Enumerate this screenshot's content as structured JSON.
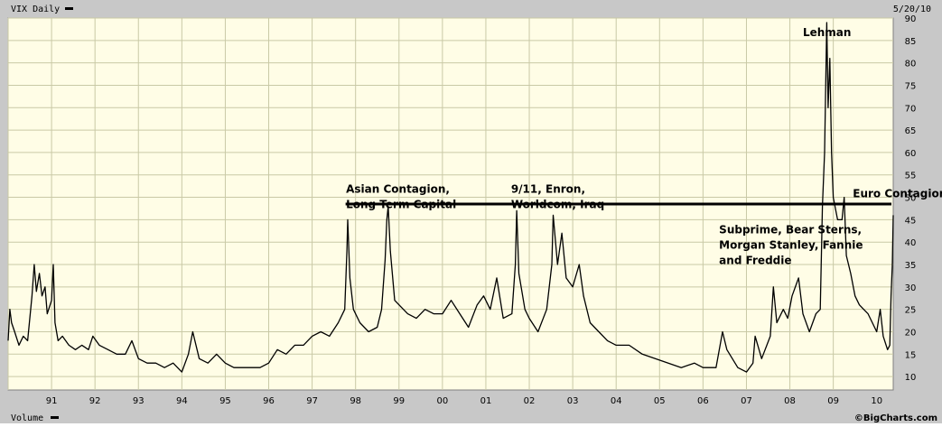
{
  "header": {
    "title": "VIX Daily",
    "date": "5/20/10"
  },
  "footer": {
    "volume_label": "Volume",
    "copyright": "©BigCharts.com"
  },
  "colors": {
    "plot_bg": "#fffde6",
    "frame_bg": "#c8c8c8",
    "grid": "#c9c9a6",
    "price_line": "#000000",
    "reference_line": "#000000"
  },
  "chart_data": {
    "type": "line",
    "title": "VIX Daily",
    "date_shown": "5/20/10",
    "grid": true,
    "ylim": [
      7,
      90
    ],
    "y_ticks": [
      10,
      15,
      20,
      25,
      30,
      35,
      40,
      45,
      50,
      55,
      60,
      65,
      70,
      75,
      80,
      85,
      90
    ],
    "xlim": [
      1990.0,
      2010.38
    ],
    "x_tick_labels": [
      "91",
      "92",
      "93",
      "94",
      "95",
      "96",
      "97",
      "98",
      "99",
      "00",
      "01",
      "02",
      "03",
      "04",
      "05",
      "06",
      "07",
      "08",
      "09",
      "10"
    ],
    "reference_level": 48.5,
    "series": [
      {
        "values": [
          [
            1990.0,
            18
          ],
          [
            1990.04,
            25
          ],
          [
            1990.08,
            22
          ],
          [
            1990.15,
            20
          ],
          [
            1990.25,
            17
          ],
          [
            1990.35,
            19
          ],
          [
            1990.45,
            18
          ],
          [
            1990.55,
            28
          ],
          [
            1990.6,
            35
          ],
          [
            1990.65,
            29
          ],
          [
            1990.72,
            33
          ],
          [
            1990.78,
            28
          ],
          [
            1990.85,
            30
          ],
          [
            1990.9,
            24
          ],
          [
            1991.0,
            27
          ],
          [
            1991.04,
            35
          ],
          [
            1991.08,
            22
          ],
          [
            1991.15,
            18
          ],
          [
            1991.25,
            19
          ],
          [
            1991.4,
            17
          ],
          [
            1991.55,
            16
          ],
          [
            1991.7,
            17
          ],
          [
            1991.85,
            16
          ],
          [
            1991.95,
            19
          ],
          [
            1992.1,
            17
          ],
          [
            1992.3,
            16
          ],
          [
            1992.5,
            15
          ],
          [
            1992.7,
            15
          ],
          [
            1992.85,
            18
          ],
          [
            1993.0,
            14
          ],
          [
            1993.2,
            13
          ],
          [
            1993.4,
            13
          ],
          [
            1993.6,
            12
          ],
          [
            1993.8,
            13
          ],
          [
            1994.0,
            11
          ],
          [
            1994.15,
            15
          ],
          [
            1994.25,
            20
          ],
          [
            1994.4,
            14
          ],
          [
            1994.6,
            13
          ],
          [
            1994.8,
            15
          ],
          [
            1995.0,
            13
          ],
          [
            1995.2,
            12
          ],
          [
            1995.4,
            12
          ],
          [
            1995.6,
            12
          ],
          [
            1995.8,
            12
          ],
          [
            1996.0,
            13
          ],
          [
            1996.2,
            16
          ],
          [
            1996.4,
            15
          ],
          [
            1996.6,
            17
          ],
          [
            1996.8,
            17
          ],
          [
            1997.0,
            19
          ],
          [
            1997.2,
            20
          ],
          [
            1997.4,
            19
          ],
          [
            1997.6,
            22
          ],
          [
            1997.75,
            25
          ],
          [
            1997.8,
            38
          ],
          [
            1997.82,
            45
          ],
          [
            1997.87,
            32
          ],
          [
            1997.95,
            25
          ],
          [
            1998.1,
            22
          ],
          [
            1998.3,
            20
          ],
          [
            1998.5,
            21
          ],
          [
            1998.6,
            25
          ],
          [
            1998.68,
            36
          ],
          [
            1998.72,
            45
          ],
          [
            1998.75,
            48
          ],
          [
            1998.8,
            38
          ],
          [
            1998.9,
            27
          ],
          [
            1999.0,
            26
          ],
          [
            1999.2,
            24
          ],
          [
            1999.4,
            23
          ],
          [
            1999.6,
            25
          ],
          [
            1999.8,
            24
          ],
          [
            2000.0,
            24
          ],
          [
            2000.2,
            27
          ],
          [
            2000.4,
            24
          ],
          [
            2000.6,
            21
          ],
          [
            2000.8,
            26
          ],
          [
            2000.95,
            28
          ],
          [
            2001.1,
            25
          ],
          [
            2001.25,
            32
          ],
          [
            2001.4,
            23
          ],
          [
            2001.6,
            24
          ],
          [
            2001.68,
            35
          ],
          [
            2001.71,
            47
          ],
          [
            2001.76,
            33
          ],
          [
            2001.9,
            25
          ],
          [
            2002.0,
            23
          ],
          [
            2002.2,
            20
          ],
          [
            2002.4,
            25
          ],
          [
            2002.52,
            35
          ],
          [
            2002.55,
            46
          ],
          [
            2002.65,
            35
          ],
          [
            2002.75,
            42
          ],
          [
            2002.85,
            32
          ],
          [
            2003.0,
            30
          ],
          [
            2003.15,
            35
          ],
          [
            2003.25,
            28
          ],
          [
            2003.4,
            22
          ],
          [
            2003.6,
            20
          ],
          [
            2003.8,
            18
          ],
          [
            2004.0,
            17
          ],
          [
            2004.3,
            17
          ],
          [
            2004.6,
            15
          ],
          [
            2004.9,
            14
          ],
          [
            2005.2,
            13
          ],
          [
            2005.5,
            12
          ],
          [
            2005.8,
            13
          ],
          [
            2006.0,
            12
          ],
          [
            2006.3,
            12
          ],
          [
            2006.45,
            20
          ],
          [
            2006.55,
            16
          ],
          [
            2006.8,
            12
          ],
          [
            2007.0,
            11
          ],
          [
            2007.15,
            13
          ],
          [
            2007.2,
            19
          ],
          [
            2007.35,
            14
          ],
          [
            2007.55,
            19
          ],
          [
            2007.62,
            30
          ],
          [
            2007.7,
            22
          ],
          [
            2007.85,
            25
          ],
          [
            2007.95,
            23
          ],
          [
            2008.05,
            28
          ],
          [
            2008.2,
            32
          ],
          [
            2008.3,
            24
          ],
          [
            2008.45,
            20
          ],
          [
            2008.6,
            24
          ],
          [
            2008.7,
            25
          ],
          [
            2008.75,
            48
          ],
          [
            2008.8,
            60
          ],
          [
            2008.85,
            89
          ],
          [
            2008.88,
            70
          ],
          [
            2008.92,
            81
          ],
          [
            2008.96,
            60
          ],
          [
            2009.0,
            50
          ],
          [
            2009.1,
            45
          ],
          [
            2009.2,
            45
          ],
          [
            2009.25,
            50
          ],
          [
            2009.3,
            37
          ],
          [
            2009.4,
            33
          ],
          [
            2009.5,
            28
          ],
          [
            2009.6,
            26
          ],
          [
            2009.7,
            25
          ],
          [
            2009.8,
            24
          ],
          [
            2009.9,
            22
          ],
          [
            2010.0,
            20
          ],
          [
            2010.08,
            25
          ],
          [
            2010.15,
            19
          ],
          [
            2010.25,
            16
          ],
          [
            2010.3,
            17
          ],
          [
            2010.33,
            28
          ],
          [
            2010.36,
            35
          ],
          [
            2010.38,
            46
          ]
        ]
      }
    ],
    "annotations": [
      {
        "lines": [
          "Asian Contagion,",
          "Long Term Capital"
        ],
        "x": 1997.78,
        "y": 51
      },
      {
        "lines": [
          "9/11, Enron,",
          "Worldcom, Iraq"
        ],
        "x": 2001.58,
        "y": 51
      },
      {
        "lines": [
          "Lehman"
        ],
        "x": 2008.3,
        "y": 86
      },
      {
        "lines": [
          "Euro Contagion"
        ],
        "x": 2009.45,
        "y": 50
      },
      {
        "lines": [
          "Subprime, Bear Sterns,",
          "Morgan Stanley, Fannie",
          "and Freddie"
        ],
        "x": 2006.37,
        "y": 42
      }
    ]
  }
}
